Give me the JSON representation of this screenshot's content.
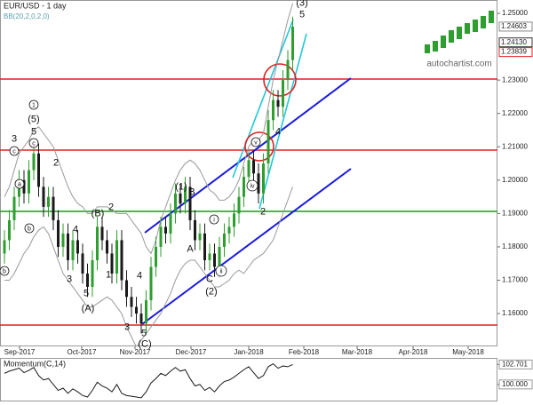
{
  "chart_data": {
    "type": "candlestick",
    "title": "EUR/USD - 1 day",
    "indicator": "BB(20,2,0,2,0)",
    "brand": "autochartist.com",
    "up_color": "#2e9e2e",
    "down_color": "#1a1a1a",
    "band_color": "#9a9a9a",
    "open": [
      1.178,
      1.182,
      1.188,
      1.195,
      1.2,
      1.196,
      1.203,
      1.208,
      1.198,
      1.192,
      1.195,
      1.188,
      1.18,
      1.184,
      1.176,
      1.182,
      1.178,
      1.172,
      1.168,
      1.176,
      1.186,
      1.182,
      1.178,
      1.172,
      1.182,
      1.17,
      1.165,
      1.162,
      1.16,
      1.157,
      1.164,
      1.174,
      1.18,
      1.186,
      1.184,
      1.19,
      1.196,
      1.193,
      1.198,
      1.188,
      1.182,
      1.184,
      1.176,
      1.178,
      1.174,
      1.18,
      1.184,
      1.186,
      1.19,
      1.195,
      1.201,
      1.206,
      1.202,
      1.196,
      1.205,
      1.218,
      1.224,
      1.222,
      1.23,
      1.236
    ],
    "high": [
      1.185,
      1.191,
      1.198,
      1.203,
      1.203,
      1.206,
      1.211,
      1.211,
      1.201,
      1.198,
      1.198,
      1.191,
      1.187,
      1.187,
      1.185,
      1.185,
      1.181,
      1.175,
      1.179,
      1.189,
      1.189,
      1.185,
      1.181,
      1.185,
      1.185,
      1.173,
      1.168,
      1.165,
      1.163,
      1.167,
      1.177,
      1.183,
      1.189,
      1.189,
      1.193,
      1.199,
      1.199,
      1.201,
      1.201,
      1.191,
      1.187,
      1.187,
      1.181,
      1.181,
      1.183,
      1.187,
      1.189,
      1.193,
      1.198,
      1.204,
      1.209,
      1.209,
      1.205,
      1.208,
      1.221,
      1.227,
      1.227,
      1.233,
      1.239,
      1.249
    ],
    "low": [
      1.175,
      1.179,
      1.185,
      1.192,
      1.193,
      1.193,
      1.2,
      1.195,
      1.189,
      1.189,
      1.185,
      1.177,
      1.177,
      1.173,
      1.173,
      1.175,
      1.169,
      1.165,
      1.165,
      1.173,
      1.179,
      1.175,
      1.169,
      1.169,
      1.167,
      1.162,
      1.159,
      1.157,
      1.154,
      1.154,
      1.161,
      1.171,
      1.177,
      1.181,
      1.181,
      1.187,
      1.19,
      1.19,
      1.185,
      1.179,
      1.179,
      1.173,
      1.173,
      1.171,
      1.171,
      1.177,
      1.181,
      1.183,
      1.187,
      1.192,
      1.198,
      1.199,
      1.193,
      1.193,
      1.202,
      1.215,
      1.219,
      1.219,
      1.227,
      1.233
    ],
    "close": [
      1.182,
      1.188,
      1.195,
      1.2,
      1.196,
      1.203,
      1.208,
      1.198,
      1.192,
      1.195,
      1.188,
      1.18,
      1.184,
      1.176,
      1.182,
      1.178,
      1.172,
      1.168,
      1.176,
      1.186,
      1.182,
      1.178,
      1.172,
      1.182,
      1.17,
      1.165,
      1.162,
      1.16,
      1.157,
      1.164,
      1.174,
      1.18,
      1.186,
      1.184,
      1.19,
      1.196,
      1.193,
      1.198,
      1.188,
      1.182,
      1.184,
      1.176,
      1.178,
      1.174,
      1.18,
      1.184,
      1.186,
      1.19,
      1.195,
      1.201,
      1.206,
      1.202,
      1.196,
      1.205,
      1.218,
      1.224,
      1.222,
      1.23,
      1.236,
      1.246
    ],
    "bb_upper": [
      1.195,
      1.198,
      1.203,
      1.208,
      1.21,
      1.212,
      1.215,
      1.216,
      1.214,
      1.212,
      1.21,
      1.206,
      1.202,
      1.198,
      1.195,
      1.193,
      1.192,
      1.19,
      1.19,
      1.192,
      1.192,
      1.192,
      1.191,
      1.19,
      1.19,
      1.19,
      1.188,
      1.186,
      1.184,
      1.18,
      1.178,
      1.182,
      1.188,
      1.192,
      1.196,
      1.2,
      1.203,
      1.205,
      1.206,
      1.205,
      1.203,
      1.2,
      1.197,
      1.196,
      1.194,
      1.194,
      1.195,
      1.197,
      1.2,
      1.205,
      1.21,
      1.212,
      1.212,
      1.214,
      1.222,
      1.23,
      1.236,
      1.242,
      1.248,
      1.253
    ],
    "bb_lower": [
      1.17,
      1.17,
      1.172,
      1.175,
      1.178,
      1.18,
      1.183,
      1.185,
      1.186,
      1.184,
      1.18,
      1.176,
      1.172,
      1.17,
      1.168,
      1.166,
      1.164,
      1.162,
      1.162,
      1.163,
      1.164,
      1.165,
      1.164,
      1.162,
      1.16,
      1.156,
      1.153,
      1.15,
      1.152,
      1.154,
      1.156,
      1.158,
      1.16,
      1.163,
      1.166,
      1.17,
      1.173,
      1.175,
      1.176,
      1.176,
      1.174,
      1.172,
      1.17,
      1.168,
      1.168,
      1.169,
      1.17,
      1.172,
      1.173,
      1.172,
      1.174,
      1.176,
      1.177,
      1.178,
      1.18,
      1.182,
      1.186,
      1.19,
      1.194,
      1.198
    ],
    "ylim": [
      1.1507,
      1.254
    ],
    "yticks": [
      {
        "value": 1.25,
        "label": "1.25000"
      },
      {
        "value": 1.23,
        "label": "1.23000"
      },
      {
        "value": 1.22,
        "label": "1.22000"
      },
      {
        "value": 1.21,
        "label": "1.21000"
      },
      {
        "value": 1.2,
        "label": "1.20000"
      },
      {
        "value": 1.19,
        "label": "1.19000"
      },
      {
        "value": 1.18,
        "label": "1.18000"
      },
      {
        "value": 1.17,
        "label": "1.17000"
      },
      {
        "value": 1.16,
        "label": "1.16000"
      }
    ],
    "price_labels": [
      {
        "value": 1.24603,
        "label": "1.24603",
        "color": "#888888"
      },
      {
        "value": 1.2413,
        "label": "1.24130",
        "color": "#333333"
      },
      {
        "value": 1.23839,
        "label": "1.23839",
        "color": "#e02020"
      }
    ],
    "xticks": [
      "Sep-2017",
      "Oct-2017",
      "Nov-2017",
      "Dec-2017",
      "Jan-2018",
      "Feb-2018",
      "Mar-2018",
      "Apr-2018",
      "May-2018"
    ],
    "annotations": [
      {
        "text": "3",
        "circled": false
      },
      {
        "text": "c",
        "circled": true
      },
      {
        "text": "1",
        "circled": true
      },
      {
        "text": "(5)",
        "circled": false
      },
      {
        "text": "5",
        "circled": false
      },
      {
        "text": "c",
        "circled": true
      },
      {
        "text": "2",
        "circled": false
      },
      {
        "text": "a",
        "circled": true
      },
      {
        "text": "b",
        "circled": true
      },
      {
        "text": "b",
        "circled": true
      },
      {
        "text": "4",
        "circled": false
      },
      {
        "text": "(B)",
        "circled": false
      },
      {
        "text": "2",
        "circled": false
      },
      {
        "text": "3",
        "circled": false
      },
      {
        "text": "1",
        "circled": false
      },
      {
        "text": "5",
        "circled": false
      },
      {
        "text": "(A)",
        "circled": false
      },
      {
        "text": "4",
        "circled": false
      },
      {
        "text": "3",
        "circled": false
      },
      {
        "text": "5",
        "circled": false
      },
      {
        "text": "(C)",
        "circled": false
      },
      {
        "text": "(1)",
        "circled": false
      },
      {
        "text": "B",
        "circled": false
      },
      {
        "text": "i",
        "circled": true
      },
      {
        "text": "A",
        "circled": false
      },
      {
        "text": "C",
        "circled": false
      },
      {
        "text": "ii",
        "circled": true
      },
      {
        "text": "(2)",
        "circled": false
      },
      {
        "text": "iv",
        "circled": true
      },
      {
        "text": "v",
        "circled": true
      },
      {
        "text": "4",
        "circled": false
      },
      {
        "text": "(3)",
        "circled": false
      },
      {
        "text": "5",
        "circled": false
      },
      {
        "text": "2",
        "circled": false
      }
    ],
    "momentum": {
      "title": "Momentum(C,14)",
      "color": "#1a1a1a",
      "values": [
        101.5,
        101.8,
        102.0,
        102.2,
        101.6,
        101.9,
        102.3,
        101.2,
        100.6,
        100.8,
        100.0,
        99.2,
        99.5,
        98.8,
        99.4,
        99.0,
        98.5,
        98.3,
        99.2,
        100.3,
        99.8,
        99.5,
        99.0,
        100.0,
        98.8,
        98.5,
        98.4,
        98.3,
        98.2,
        99.0,
        100.2,
        100.8,
        101.5,
        101.2,
        101.8,
        102.3,
        101.8,
        102.0,
        100.8,
        99.8,
        100.0,
        99.2,
        99.6,
        99.0,
        99.8,
        100.4,
        100.6,
        101.0,
        101.5,
        102.0,
        102.4,
        101.6,
        100.8,
        101.2,
        102.4,
        102.8,
        102.2,
        102.5,
        102.4,
        102.701
      ],
      "ylim": [
        97.7,
        103.47
      ],
      "yticks": [
        {
          "value": 102.701,
          "label": "102.701"
        },
        {
          "value": 100,
          "label": "100.000"
        }
      ]
    }
  }
}
